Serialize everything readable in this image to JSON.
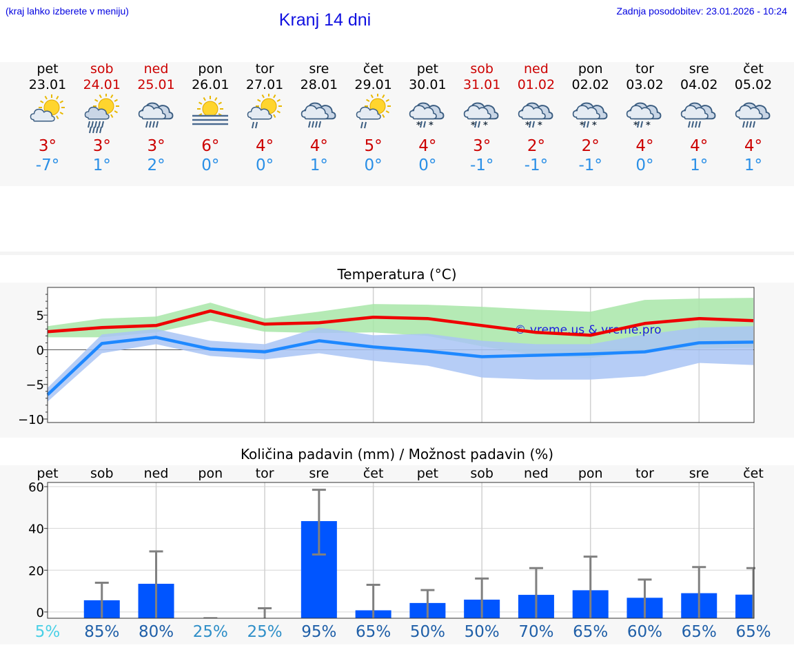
{
  "header": {
    "hint": "(kraj lahko izberete v meniju)",
    "title": "Kranj 14 dni",
    "updated": "Zadnja posodobitev: 23.01.2026 - 10:24"
  },
  "days": [
    {
      "name": "pet",
      "date": "23.01",
      "weekend": false,
      "icon": "sun-cloud-icon",
      "hi": "3°",
      "lo": "-7°"
    },
    {
      "name": "sob",
      "date": "24.01",
      "weekend": true,
      "icon": "sun-cloud-rain-icon",
      "hi": "3°",
      "lo": "1°"
    },
    {
      "name": "ned",
      "date": "25.01",
      "weekend": true,
      "icon": "rain-cloud-icon",
      "hi": "3°",
      "lo": "2°"
    },
    {
      "name": "pon",
      "date": "26.01",
      "weekend": false,
      "icon": "sun-fog-icon",
      "hi": "6°",
      "lo": "0°"
    },
    {
      "name": "tor",
      "date": "27.01",
      "weekend": false,
      "icon": "sun-cloud-light-rain-icon",
      "hi": "4°",
      "lo": "0°"
    },
    {
      "name": "sre",
      "date": "28.01",
      "weekend": false,
      "icon": "rain-cloud-icon",
      "hi": "4°",
      "lo": "1°"
    },
    {
      "name": "čet",
      "date": "29.01",
      "weekend": false,
      "icon": "sun-cloud-light-rain-icon",
      "hi": "5°",
      "lo": "0°"
    },
    {
      "name": "pet",
      "date": "30.01",
      "weekend": false,
      "icon": "sleet-cloud-icon",
      "hi": "4°",
      "lo": "0°"
    },
    {
      "name": "sob",
      "date": "31.01",
      "weekend": true,
      "icon": "sleet-cloud-icon",
      "hi": "3°",
      "lo": "-1°"
    },
    {
      "name": "ned",
      "date": "01.02",
      "weekend": true,
      "icon": "sleet-cloud-icon",
      "hi": "2°",
      "lo": "-1°"
    },
    {
      "name": "pon",
      "date": "02.02",
      "weekend": false,
      "icon": "sleet-cloud-icon",
      "hi": "2°",
      "lo": "-1°"
    },
    {
      "name": "tor",
      "date": "03.02",
      "weekend": false,
      "icon": "sleet-cloud-icon",
      "hi": "4°",
      "lo": "0°"
    },
    {
      "name": "sre",
      "date": "04.02",
      "weekend": false,
      "icon": "rain-cloud-icon",
      "hi": "4°",
      "lo": "1°"
    },
    {
      "name": "čet",
      "date": "05.02",
      "weekend": false,
      "icon": "rain-cloud-icon",
      "hi": "4°",
      "lo": "1°"
    }
  ],
  "colors": {
    "weekend": "#cc0000",
    "weekday": "#000000",
    "max_line": "#ee0000",
    "min_line": "#1e88ff",
    "max_band": "#a8e6a8",
    "min_band": "#a9c4f5",
    "bar": "#0055ff",
    "whisker": "#808080"
  },
  "chart_data": [
    {
      "type": "line",
      "title": "Temperatura (°C)",
      "watermark": "© vreme.us & vreme.pro",
      "ylim": [
        -10.5,
        9
      ],
      "yticks": [
        {
          "value": 5,
          "label": "5"
        },
        {
          "value": 0,
          "label": "0"
        },
        {
          "value": -5,
          "label": "−5"
        },
        {
          "value": -10,
          "label": "−10"
        }
      ],
      "x": [
        0,
        1,
        2,
        3,
        4,
        5,
        6,
        7,
        8,
        9,
        10,
        11,
        12,
        13
      ],
      "series": [
        {
          "name": "max",
          "values": [
            2.6,
            3.2,
            3.5,
            5.6,
            3.7,
            3.9,
            4.7,
            4.5,
            3.5,
            2.5,
            2.1,
            3.8,
            4.5,
            4.2
          ],
          "band_low": [
            1.8,
            1.8,
            2.5,
            4.2,
            2.6,
            2.4,
            2.5,
            2.0,
            0.5,
            -0.8,
            -1.2,
            -0.2,
            0.2,
            0.3
          ],
          "band_high": [
            3.4,
            4.5,
            4.8,
            6.8,
            4.5,
            5.5,
            6.6,
            6.5,
            6.2,
            5.8,
            5.5,
            7.2,
            7.4,
            7.5
          ]
        },
        {
          "name": "min",
          "values": [
            -6.5,
            0.9,
            1.8,
            0.1,
            -0.3,
            1.3,
            0.4,
            -0.2,
            -1.0,
            -0.8,
            -0.6,
            -0.3,
            1.0,
            1.1
          ],
          "band_low": [
            -7.5,
            -0.5,
            0.8,
            -0.9,
            -1.4,
            -0.5,
            -1.6,
            -2.3,
            -4.0,
            -4.3,
            -4.3,
            -3.8,
            -1.9,
            -2.2
          ],
          "band_high": [
            -5.5,
            2.2,
            3.0,
            1.3,
            0.8,
            3.2,
            2.1,
            2.3,
            1.3,
            0.8,
            0.8,
            2.2,
            3.2,
            3.4
          ]
        }
      ]
    },
    {
      "type": "bar",
      "title": "Količina padavin (mm) / Možnost padavin (%)",
      "ylim": [
        -3,
        62
      ],
      "yticks": [
        {
          "value": 60,
          "label": "60"
        },
        {
          "value": 40,
          "label": "40"
        },
        {
          "value": 20,
          "label": "20"
        },
        {
          "value": 0,
          "label": "0"
        }
      ],
      "categories": [
        "pet",
        "sob",
        "ned",
        "pon",
        "tor",
        "sre",
        "čet",
        "pet",
        "sob",
        "ned",
        "pon",
        "tor",
        "sre",
        "čet"
      ],
      "values": [
        0,
        5.6,
        13.5,
        0,
        0,
        43.5,
        0.8,
        4.3,
        5.9,
        8.2,
        10.4,
        6.8,
        9.0,
        8.3
      ],
      "error_high": [
        0,
        14,
        29,
        0,
        1.8,
        58.5,
        13,
        10.5,
        16,
        21,
        26.5,
        15.5,
        21.5,
        21
      ],
      "error_low": [
        0,
        0,
        0,
        0,
        0,
        27.5,
        0,
        0,
        0,
        0,
        0,
        0,
        0,
        0
      ],
      "chance": [
        "5%",
        "85%",
        "80%",
        "25%",
        "25%",
        "95%",
        "65%",
        "50%",
        "50%",
        "70%",
        "65%",
        "60%",
        "65%",
        "65%"
      ],
      "chance_colors": [
        "#4ad0e6",
        "#1f5fa8",
        "#1f5fa8",
        "#2f8fc8",
        "#2f8fc8",
        "#1f5fa8",
        "#1f5fa8",
        "#1f5fa8",
        "#1f5fa8",
        "#1f5fa8",
        "#1f5fa8",
        "#1f5fa8",
        "#1f5fa8",
        "#1f5fa8"
      ]
    }
  ]
}
